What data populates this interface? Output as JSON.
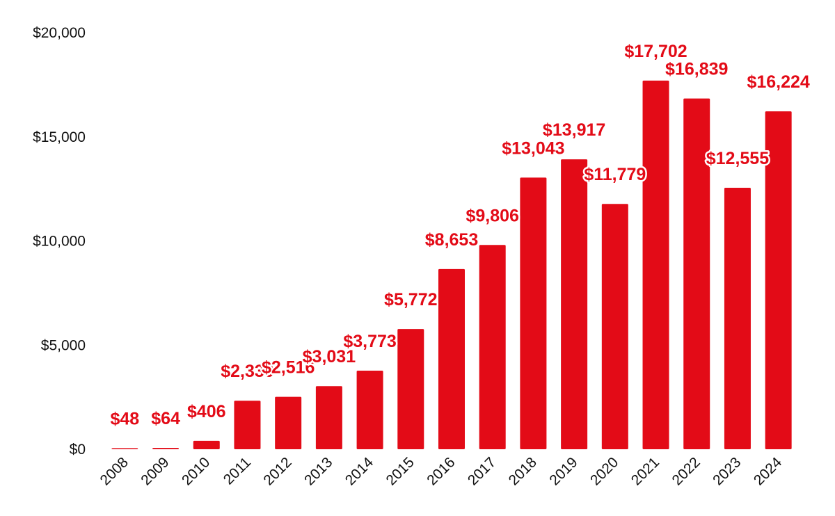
{
  "colors": {
    "bar": "#e30b17",
    "label": "#e30b17",
    "text": "#111111"
  },
  "chart_data": {
    "type": "bar",
    "title": "",
    "xlabel": "",
    "ylabel": "",
    "ylim": [
      0,
      20000
    ],
    "yticks": [
      0,
      5000,
      10000,
      15000,
      20000
    ],
    "ytick_labels": [
      "$0",
      "$5,000",
      "$10,000",
      "$15,000",
      "$20,000"
    ],
    "categories": [
      "2008",
      "2009",
      "2010",
      "2011",
      "2012",
      "2013",
      "2014",
      "2015",
      "2016",
      "2017",
      "2018",
      "2019",
      "2020",
      "2021",
      "2022",
      "2023",
      "2024"
    ],
    "values": [
      48,
      64,
      406,
      2330,
      2516,
      3031,
      3773,
      5772,
      8653,
      9806,
      13043,
      13917,
      11779,
      17702,
      16839,
      12555,
      16224
    ],
    "data_labels": [
      "$48",
      "$64",
      "$406",
      "$2,330",
      "$2,516",
      "$3,031",
      "$3,773",
      "$5,772",
      "$8,653",
      "$9,806",
      "$13,043",
      "$13,917",
      "$11,779",
      "$17,702",
      "$16,839",
      "$12,555",
      "$16,224"
    ],
    "grid": false,
    "legend": "none"
  }
}
